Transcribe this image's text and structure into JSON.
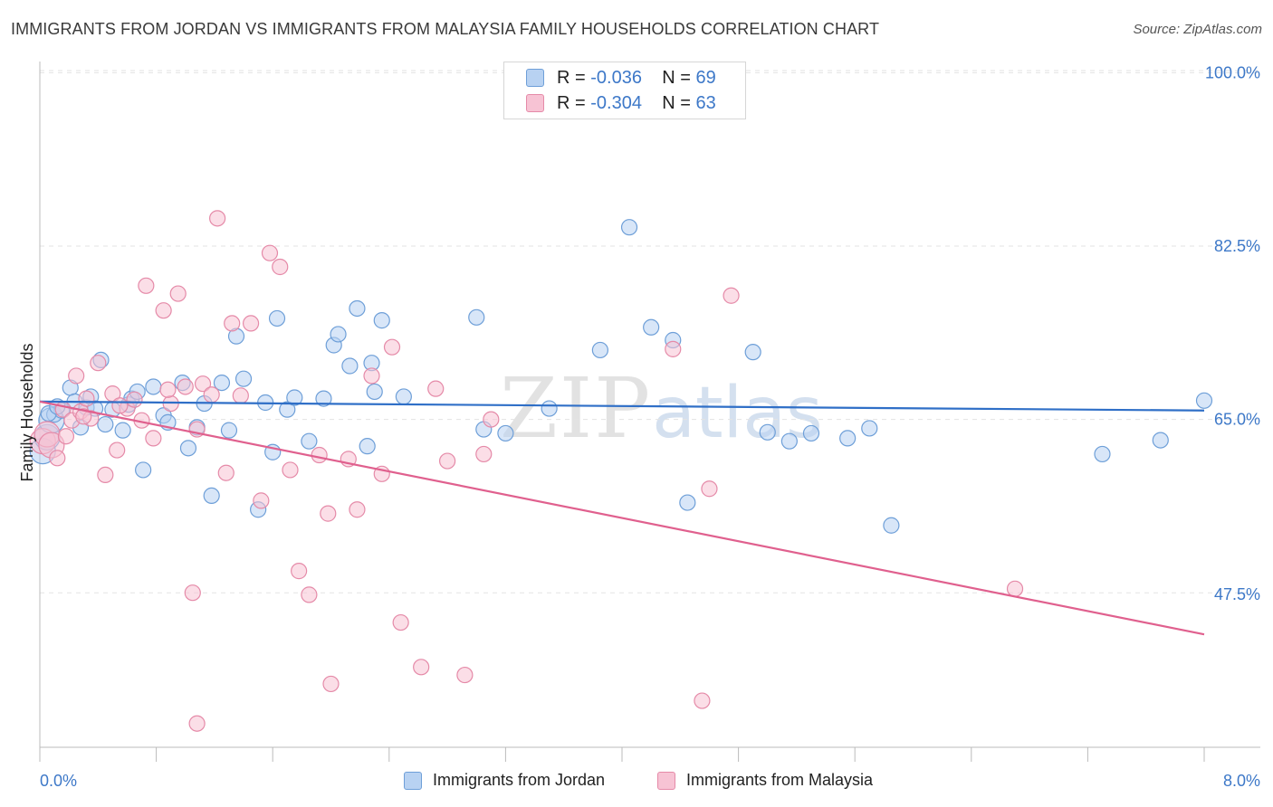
{
  "title": "IMMIGRANTS FROM JORDAN VS IMMIGRANTS FROM MALAYSIA FAMILY HOUSEHOLDS CORRELATION CHART",
  "source": "Source: ZipAtlas.com",
  "watermark": {
    "zip": "ZIP",
    "atlas": "atlas"
  },
  "legend_top": [
    {
      "r_label": "R =",
      "r_value": "-0.036",
      "n_label": "N =",
      "n_value": "69"
    },
    {
      "r_label": "R =",
      "r_value": "-0.304",
      "n_label": "N =",
      "n_value": "63"
    }
  ],
  "colors": {
    "jordan_fill": "#b8d2f2",
    "jordan_stroke": "#6e9fd8",
    "jordan_line": "#2f6fc7",
    "malaysia_fill": "#f7c3d4",
    "malaysia_stroke": "#e58aa8",
    "malaysia_line": "#e0608e",
    "tick": "#3d78c8",
    "grid": "#e3e3e3"
  },
  "chart_data": {
    "type": "scatter",
    "title": "IMMIGRANTS FROM JORDAN VS IMMIGRANTS FROM MALAYSIA FAMILY HOUSEHOLDS CORRELATION CHART",
    "xlabel": "",
    "ylabel": "Family Households",
    "xlim": [
      0,
      8
    ],
    "ylim": [
      32,
      102
    ],
    "x_tick_labels": [
      "0.0%",
      "8.0%"
    ],
    "y_ticks": [
      47.5,
      65.0,
      82.5,
      100.0
    ],
    "y_tick_labels": [
      "47.5%",
      "65.0%",
      "82.5%",
      "100.0%"
    ],
    "legend_position": "bottom-center",
    "series": [
      {
        "name": "Immigrants from Jordan",
        "color": "#6e9fd8",
        "trend": {
          "x": [
            0,
            8
          ],
          "y": [
            66.8,
            65.9
          ]
        },
        "points": [
          [
            0.02,
            61.8
          ],
          [
            0.05,
            63.2
          ],
          [
            0.08,
            64.9
          ],
          [
            0.1,
            65.5
          ],
          [
            0.15,
            65.9
          ],
          [
            0.21,
            68.2
          ],
          [
            0.24,
            66.8
          ],
          [
            0.28,
            64.2
          ],
          [
            0.32,
            66.2
          ],
          [
            0.35,
            67.3
          ],
          [
            0.38,
            66.1
          ],
          [
            0.42,
            71.0
          ],
          [
            0.45,
            64.5
          ],
          [
            0.5,
            66.0
          ],
          [
            0.57,
            63.9
          ],
          [
            0.61,
            66.5
          ],
          [
            0.63,
            67.1
          ],
          [
            0.67,
            67.8
          ],
          [
            0.71,
            59.9
          ],
          [
            0.78,
            68.3
          ],
          [
            0.85,
            65.4
          ],
          [
            0.88,
            64.7
          ],
          [
            0.98,
            68.7
          ],
          [
            1.02,
            62.1
          ],
          [
            1.08,
            64.2
          ],
          [
            1.13,
            66.6
          ],
          [
            1.18,
            57.3
          ],
          [
            1.25,
            68.7
          ],
          [
            1.3,
            63.9
          ],
          [
            1.35,
            73.4
          ],
          [
            1.4,
            69.1
          ],
          [
            1.5,
            55.9
          ],
          [
            1.55,
            66.7
          ],
          [
            1.6,
            61.7
          ],
          [
            1.63,
            75.2
          ],
          [
            1.7,
            66.0
          ],
          [
            1.75,
            67.2
          ],
          [
            1.85,
            62.8
          ],
          [
            1.95,
            67.1
          ],
          [
            2.02,
            72.5
          ],
          [
            2.05,
            73.6
          ],
          [
            2.13,
            70.4
          ],
          [
            2.18,
            76.2
          ],
          [
            2.25,
            62.3
          ],
          [
            2.28,
            70.7
          ],
          [
            2.3,
            67.8
          ],
          [
            2.35,
            75.0
          ],
          [
            2.5,
            67.3
          ],
          [
            3.0,
            75.3
          ],
          [
            3.05,
            64.0
          ],
          [
            3.2,
            63.6
          ],
          [
            3.5,
            66.1
          ],
          [
            3.85,
            72.0
          ],
          [
            4.05,
            84.4
          ],
          [
            4.2,
            74.3
          ],
          [
            4.35,
            73.0
          ],
          [
            4.45,
            56.6
          ],
          [
            4.9,
            71.8
          ],
          [
            5.0,
            63.7
          ],
          [
            5.15,
            62.8
          ],
          [
            5.3,
            63.6
          ],
          [
            5.55,
            63.1
          ],
          [
            5.7,
            64.1
          ],
          [
            5.85,
            54.3
          ],
          [
            7.3,
            61.5
          ],
          [
            7.7,
            62.9
          ],
          [
            8.0,
            66.9
          ],
          [
            0.06,
            65.6
          ],
          [
            0.12,
            66.3
          ]
        ]
      },
      {
        "name": "Immigrants from Malaysia",
        "color": "#e58aa8",
        "trend": {
          "x": [
            0,
            8
          ],
          "y": [
            66.8,
            43.3
          ]
        },
        "points": [
          [
            0.02,
            62.8
          ],
          [
            0.05,
            63.5
          ],
          [
            0.08,
            62.4
          ],
          [
            0.12,
            61.1
          ],
          [
            0.16,
            66.0
          ],
          [
            0.22,
            64.9
          ],
          [
            0.25,
            69.4
          ],
          [
            0.28,
            65.8
          ],
          [
            0.32,
            67.1
          ],
          [
            0.35,
            65.1
          ],
          [
            0.4,
            70.7
          ],
          [
            0.45,
            59.4
          ],
          [
            0.5,
            67.6
          ],
          [
            0.53,
            61.9
          ],
          [
            0.6,
            66.1
          ],
          [
            0.65,
            67.0
          ],
          [
            0.7,
            64.9
          ],
          [
            0.73,
            78.5
          ],
          [
            0.78,
            63.1
          ],
          [
            0.85,
            76.0
          ],
          [
            0.9,
            66.6
          ],
          [
            0.95,
            77.7
          ],
          [
            1.0,
            68.3
          ],
          [
            1.05,
            47.5
          ],
          [
            1.08,
            64.0
          ],
          [
            1.12,
            68.6
          ],
          [
            1.18,
            67.5
          ],
          [
            1.22,
            85.3
          ],
          [
            1.28,
            59.6
          ],
          [
            1.32,
            74.7
          ],
          [
            1.38,
            67.4
          ],
          [
            1.45,
            74.7
          ],
          [
            1.52,
            56.8
          ],
          [
            1.58,
            81.8
          ],
          [
            1.65,
            80.4
          ],
          [
            1.72,
            59.9
          ],
          [
            1.78,
            49.7
          ],
          [
            1.85,
            47.3
          ],
          [
            1.92,
            61.4
          ],
          [
            1.98,
            55.5
          ],
          [
            2.0,
            38.3
          ],
          [
            2.12,
            61.0
          ],
          [
            2.18,
            55.9
          ],
          [
            2.28,
            69.4
          ],
          [
            2.35,
            59.5
          ],
          [
            2.42,
            72.3
          ],
          [
            2.48,
            44.5
          ],
          [
            2.62,
            40.0
          ],
          [
            2.72,
            68.1
          ],
          [
            2.8,
            60.8
          ],
          [
            2.92,
            39.2
          ],
          [
            3.05,
            61.5
          ],
          [
            3.1,
            65.0
          ],
          [
            4.35,
            72.1
          ],
          [
            4.55,
            36.6
          ],
          [
            4.6,
            58.0
          ],
          [
            4.75,
            77.5
          ],
          [
            6.7,
            47.9
          ],
          [
            1.08,
            34.3
          ],
          [
            0.18,
            63.3
          ],
          [
            0.3,
            65.3
          ],
          [
            0.55,
            66.4
          ],
          [
            0.88,
            68.0
          ]
        ]
      }
    ]
  },
  "bottom_legend": [
    "Immigrants from Jordan",
    "Immigrants from Malaysia"
  ]
}
